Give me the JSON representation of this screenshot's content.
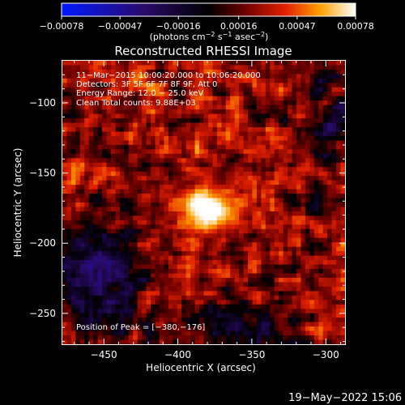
{
  "chart_data": {
    "type": "heatmap",
    "title": "Reconstructed RHESSI Image",
    "xlabel": "Heliocentric X (arcsec)",
    "ylabel": "Heliocentric Y (arcsec)",
    "xlim": [
      -478,
      -287
    ],
    "ylim": [
      -272,
      -70
    ],
    "x_ticks": [
      -450,
      -400,
      -350,
      -300
    ],
    "y_ticks": [
      -100,
      -150,
      -200,
      -250
    ],
    "x_tick_labels": [
      "−450",
      "−400",
      "−350",
      "−300"
    ],
    "y_tick_labels": [
      "−100",
      "−150",
      "−200",
      "−250"
    ],
    "colorbar": {
      "range": [
        -0.00078,
        0.00078
      ],
      "ticks": [
        -0.00078,
        -0.00047,
        -0.00016,
        0.00016,
        0.00047,
        0.00078
      ],
      "tick_labels": [
        "−0.00078",
        "−0.00047",
        "−0.00016",
        "0.00016",
        "0.00047",
        "0.00078"
      ],
      "units_main": "(photons cm",
      "units_exp1": "−2",
      "units_mid": " s",
      "units_exp2": "−1",
      "units_mid2": " asec",
      "units_exp3": "−2",
      "units_end": ")",
      "colors": [
        "#0018ff",
        "#000000",
        "#7a0000",
        "#ff3a00",
        "#ffc000",
        "#ffffff"
      ]
    },
    "annotations": [
      "11−Mar−2015 10:00:20.000 to 10:06:20.000",
      "Detectors: 3F 5F 6F 7F 8F 9F, Att 0",
      "Energy Range: 12.0 − 25.0 keV",
      "Clean     Total counts: 9.88E+03"
    ],
    "peak_label": "Position of Peak = [−380,−176]",
    "peak": [
      -380,
      -176
    ],
    "grid": false
  },
  "footer": {
    "timestamp": "19−May−2022 15:06"
  }
}
